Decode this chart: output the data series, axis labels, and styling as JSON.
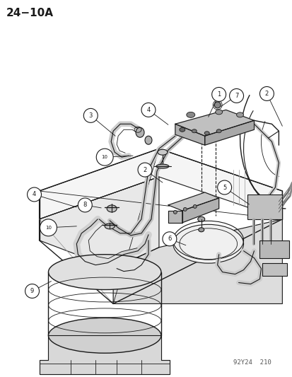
{
  "title_text": "24−10A",
  "footer_text": "92Y24  210",
  "bg_color": "#ffffff",
  "title_fontsize": 11,
  "footer_fontsize": 6.5,
  "fig_width": 4.14,
  "fig_height": 5.33,
  "dpi": 100,
  "line_color": "#1a1a1a",
  "gray_fill": "#c8c8c8",
  "light_gray": "#e8e8e8",
  "mid_gray": "#b0b0b0"
}
